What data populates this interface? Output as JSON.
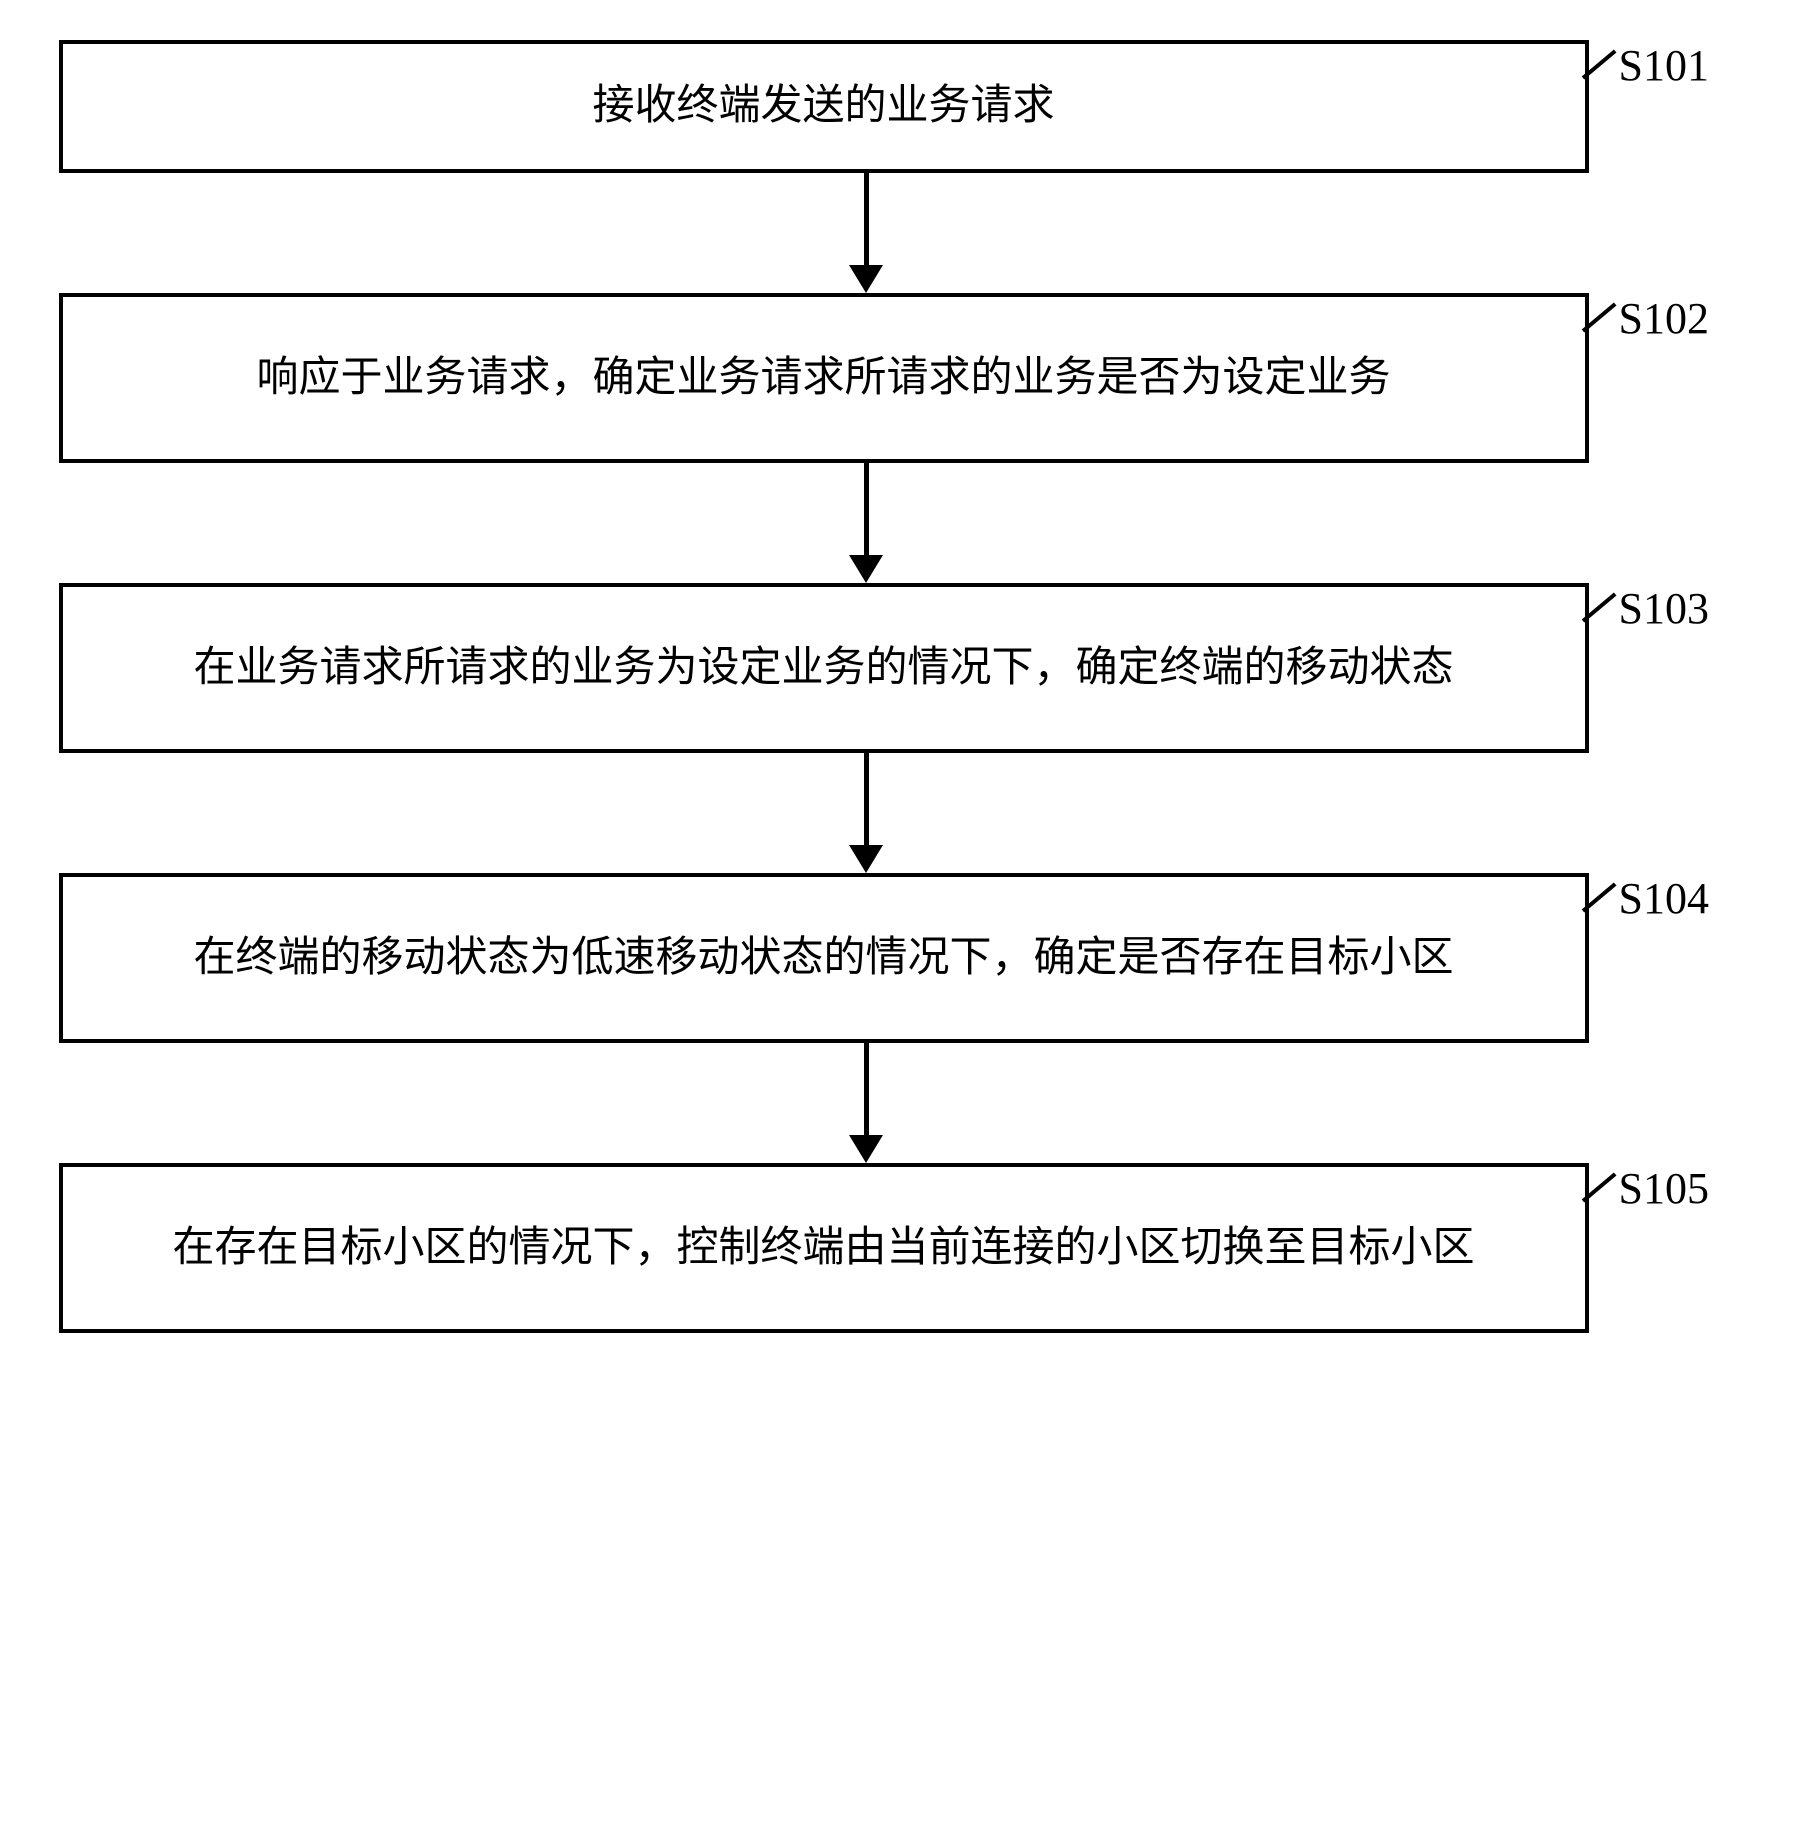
{
  "flowchart": {
    "type": "flowchart",
    "direction": "vertical",
    "background_color": "#ffffff",
    "box_border_color": "#000000",
    "box_border_width": 4,
    "box_background": "#ffffff",
    "text_color": "#000000",
    "text_fontsize": 42,
    "label_fontsize": 44,
    "arrow_color": "#000000",
    "arrow_line_width": 5,
    "arrow_head_size": 28,
    "steps": [
      {
        "id": "S101",
        "label": "S101",
        "text": "接收终端发送的业务请求",
        "single_line": true
      },
      {
        "id": "S102",
        "label": "S102",
        "text": "响应于业务请求，确定业务请求所请求的业务是否为设定业务",
        "single_line": false
      },
      {
        "id": "S103",
        "label": "S103",
        "text": "在业务请求所请求的业务为设定业务的情况下，确定终端的移动状态",
        "single_line": false
      },
      {
        "id": "S104",
        "label": "S104",
        "text": "在终端的移动状态为低速移动状态的情况下，确定是否存在目标小区",
        "single_line": false
      },
      {
        "id": "S105",
        "label": "S105",
        "text": "在存在目标小区的情况下，控制终端由当前连接的小区切换至目标小区",
        "single_line": false
      }
    ]
  }
}
